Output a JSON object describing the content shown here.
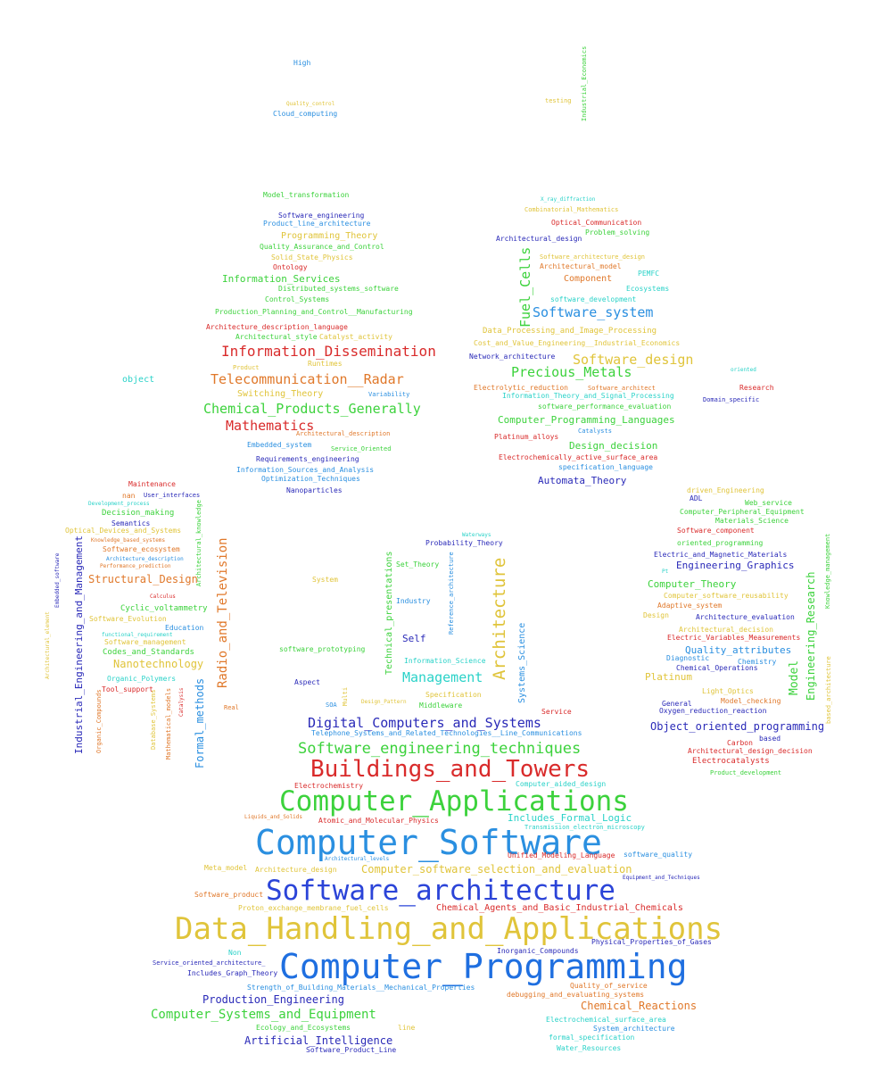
{
  "words": [
    {
      "text": "Computer_Programming",
      "color": "#1f6fe0"
    },
    {
      "text": "Computer_Software",
      "color": "#2a8fe0"
    },
    {
      "text": "Data_Handling_and_Applications",
      "color": "#e0c43a"
    },
    {
      "text": "Software_architecture",
      "color": "#2b44d8"
    },
    {
      "text": "Computer_Applications",
      "color": "#3cd23c"
    },
    {
      "text": "Buildings_and_Towers",
      "color": "#d92b2b"
    },
    {
      "text": "Software_engineering_techniques",
      "color": "#3cd23c"
    },
    {
      "text": "Digital_Computers_and_Systems",
      "color": "#2a2ab8"
    },
    {
      "text": "Architecture",
      "color": "#e0c43a"
    },
    {
      "text": "Information_Dissemination",
      "color": "#d92b2b"
    },
    {
      "text": "Telecommunication__Radar",
      "color": "#e0782a"
    },
    {
      "text": "Chemical_Products_Generally",
      "color": "#3cd23c"
    },
    {
      "text": "Mathematics",
      "color": "#d92b2b"
    },
    {
      "text": "Software_system",
      "color": "#2a8fe0"
    },
    {
      "text": "Software_design",
      "color": "#e0c43a"
    },
    {
      "text": "Precious_Metals",
      "color": "#3cd23c"
    },
    {
      "text": "Fuel_Cells",
      "color": "#3cd23c"
    },
    {
      "text": "Management",
      "color": "#2ad2c8"
    },
    {
      "text": "Radio_and_Television",
      "color": "#e0782a"
    },
    {
      "text": "Industrial_Engineering_and_Management",
      "color": "#2a2ab8"
    },
    {
      "text": "Formal_methods",
      "color": "#2a8fe0"
    },
    {
      "text": "Engineering_Research",
      "color": "#3cd23c"
    },
    {
      "text": "Model",
      "color": "#3cd23c"
    },
    {
      "text": "Structural_Design",
      "color": "#e0782a"
    },
    {
      "text": "Nanotechnology",
      "color": "#e0c43a"
    },
    {
      "text": "Computer_Systems_and_Equipment",
      "color": "#3cd23c"
    },
    {
      "text": "Artificial_Intelligence",
      "color": "#2a2ab8"
    },
    {
      "text": "Production_Engineering",
      "color": "#2a2ab8"
    },
    {
      "text": "Chemical_Reactions",
      "color": "#e0782a"
    },
    {
      "text": "Object_oriented_programming",
      "color": "#2a2ab8"
    },
    {
      "text": "Computer_Programming_Languages",
      "color": "#3cd23c"
    },
    {
      "text": "Design_decision",
      "color": "#3cd23c"
    },
    {
      "text": "Automata_Theory",
      "color": "#2a2ab8"
    },
    {
      "text": "Engineering_Graphics",
      "color": "#2a2ab8"
    },
    {
      "text": "Computer_Theory",
      "color": "#3cd23c"
    },
    {
      "text": "Quality_attributes",
      "color": "#2a8fe0"
    },
    {
      "text": "Information_Services",
      "color": "#3cd23c"
    },
    {
      "text": "Computer_software_selection_and_evaluation",
      "color": "#e0c43a"
    },
    {
      "text": "Chemical_Agents_and_Basic_Industrial_Chemicals",
      "color": "#d92b2b"
    },
    {
      "text": "Includes_Formal_Logic",
      "color": "#2ad2c8"
    },
    {
      "text": "Technical_presentations",
      "color": "#3cd23c"
    },
    {
      "text": "Systems_Science",
      "color": "#2a8fe0"
    },
    {
      "text": "Self",
      "color": "#2a2ab8"
    },
    {
      "text": "Platinum",
      "color": "#e0c43a"
    },
    {
      "text": "Programming_Theory",
      "color": "#e0c43a"
    },
    {
      "text": "Component",
      "color": "#e0782a"
    },
    {
      "text": "Switching_Theory",
      "color": "#e0c43a"
    },
    {
      "text": "object",
      "color": "#2ad2c8"
    },
    {
      "text": "Decision_making",
      "color": "#3cd23c"
    },
    {
      "text": "Codes_and_Standards",
      "color": "#3cd23c"
    },
    {
      "text": "Cyclic_voltammetry",
      "color": "#3cd23c"
    },
    {
      "text": "Data_Processing_and_Image_Processing",
      "color": "#e0c43a"
    },
    {
      "text": "Electrochemistry",
      "color": "#d92b2b"
    },
    {
      "text": "Architecture_design",
      "color": "#e0c43a"
    },
    {
      "text": "Software_Product_Line",
      "color": "#2a2ab8"
    },
    {
      "text": "Ecology_and_Ecosystems",
      "color": "#3cd23c"
    },
    {
      "text": "Strength_of_Building_Materials__Mechanical_Properties",
      "color": "#2a8fe0"
    },
    {
      "text": "Telephone_Systems_and_Related_Technologies__Line_Communications",
      "color": "#2a8fe0"
    },
    {
      "text": "Information_Science",
      "color": "#2ad2c8"
    },
    {
      "text": "Electrocatalysts",
      "color": "#d92b2b"
    },
    {
      "text": "Architectural_design_decision",
      "color": "#d92b2b"
    },
    {
      "text": "Oxygen_reduction_reaction",
      "color": "#2a2ab8"
    },
    {
      "text": "Chemistry",
      "color": "#2a8fe0"
    },
    {
      "text": "Chemical_Operations",
      "color": "#2a2ab8"
    },
    {
      "text": "Diagnostic",
      "color": "#2a8fe0"
    },
    {
      "text": "Electric_Variables_Measurements",
      "color": "#d92b2b"
    },
    {
      "text": "Architectural_decision",
      "color": "#e0c43a"
    },
    {
      "text": "Architecture_evaluation",
      "color": "#2a2ab8"
    },
    {
      "text": "Adaptive_system",
      "color": "#e0782a"
    },
    {
      "text": "Computer_software_reusability",
      "color": "#e0c43a"
    },
    {
      "text": "Electric_and_Magnetic_Materials",
      "color": "#2a2ab8"
    },
    {
      "text": "oriented_programming",
      "color": "#3cd23c"
    },
    {
      "text": "Software_component",
      "color": "#d92b2b"
    },
    {
      "text": "Materials_Science",
      "color": "#3cd23c"
    },
    {
      "text": "Computer_Peripheral_Equipment",
      "color": "#3cd23c"
    },
    {
      "text": "Web_service",
      "color": "#3cd23c"
    },
    {
      "text": "driven_Engineering",
      "color": "#e0c43a"
    },
    {
      "text": "ADL",
      "color": "#2a2ab8"
    },
    {
      "text": "Knowledge_management",
      "color": "#3cd23c"
    },
    {
      "text": "based_architecture",
      "color": "#e0c43a"
    },
    {
      "text": "Light_Optics",
      "color": "#e0c43a"
    },
    {
      "text": "Model_checking",
      "color": "#e0782a"
    },
    {
      "text": "General",
      "color": "#2a2ab8"
    },
    {
      "text": "Carbon",
      "color": "#d92b2b"
    },
    {
      "text": "based",
      "color": "#2a2ab8"
    },
    {
      "text": "Product_development",
      "color": "#3cd23c"
    },
    {
      "text": "Design",
      "color": "#e0c43a"
    },
    {
      "text": "Pt",
      "color": "#2ad2c8"
    },
    {
      "text": "Architectural_design",
      "color": "#2a2ab8"
    },
    {
      "text": "Optical_Communication",
      "color": "#d92b2b"
    },
    {
      "text": "Problem_solving",
      "color": "#3cd23c"
    },
    {
      "text": "Combinatorial_Mathematics",
      "color": "#e0c43a"
    },
    {
      "text": "X_ray_diffraction",
      "color": "#2ad2c8"
    },
    {
      "text": "Software_architecture_design",
      "color": "#e0c43a"
    },
    {
      "text": "Architectural_model",
      "color": "#e0782a"
    },
    {
      "text": "PEMFC",
      "color": "#2ad2c8"
    },
    {
      "text": "Ecosystems",
      "color": "#2ad2c8"
    },
    {
      "text": "software_development",
      "color": "#2ad2c8"
    },
    {
      "text": "Cost_and_Value_Engineering__Industrial_Economics",
      "color": "#e0c43a"
    },
    {
      "text": "Network_architecture",
      "color": "#2a2ab8"
    },
    {
      "text": "oriented",
      "color": "#2ad2c8"
    },
    {
      "text": "Research",
      "color": "#d92b2b"
    },
    {
      "text": "Domain_specific",
      "color": "#2a2ab8"
    },
    {
      "text": "Electrolytic_reduction",
      "color": "#e0782a"
    },
    {
      "text": "Software_architect",
      "color": "#e0782a"
    },
    {
      "text": "Information_Theory_and_Signal_Processing",
      "color": "#2ad2c8"
    },
    {
      "text": "software_performance_evaluation",
      "color": "#3cd23c"
    },
    {
      "text": "Catalysts",
      "color": "#2a8fe0"
    },
    {
      "text": "Platinum_alloys",
      "color": "#d92b2b"
    },
    {
      "text": "Electrochemically_active_surface_area",
      "color": "#d92b2b"
    },
    {
      "text": "specification_language",
      "color": "#2a8fe0"
    },
    {
      "text": "High",
      "color": "#2a8fe0"
    },
    {
      "text": "Quality_control",
      "color": "#e0c43a"
    },
    {
      "text": "Cloud_computing",
      "color": "#2a8fe0"
    },
    {
      "text": "testing",
      "color": "#e0c43a"
    },
    {
      "text": "Industrial_Economics",
      "color": "#3cd23c"
    },
    {
      "text": "Model_transformation",
      "color": "#3cd23c"
    },
    {
      "text": "Software_engineering",
      "color": "#2a2ab8"
    },
    {
      "text": "Product_line_architecture",
      "color": "#2a8fe0"
    },
    {
      "text": "Quality_Assurance_and_Control",
      "color": "#3cd23c"
    },
    {
      "text": "Solid_State_Physics",
      "color": "#e0c43a"
    },
    {
      "text": "Ontology",
      "color": "#d92b2b"
    },
    {
      "text": "Distributed_systems_software",
      "color": "#3cd23c"
    },
    {
      "text": "Control_Systems",
      "color": "#3cd23c"
    },
    {
      "text": "Production_Planning_and_Control__Manufacturing",
      "color": "#3cd23c"
    },
    {
      "text": "Architecture_description_language",
      "color": "#d92b2b"
    },
    {
      "text": "Architectural_style",
      "color": "#3cd23c"
    },
    {
      "text": "Catalyst_activity",
      "color": "#e0c43a"
    },
    {
      "text": "Product",
      "color": "#e0c43a"
    },
    {
      "text": "Runtimes",
      "color": "#e0c43a"
    },
    {
      "text": "Variability",
      "color": "#2a8fe0"
    },
    {
      "text": "Architectural_description",
      "color": "#e0782a"
    },
    {
      "text": "Embedded_system",
      "color": "#2a8fe0"
    },
    {
      "text": "Service_Oriented",
      "color": "#3cd23c"
    },
    {
      "text": "Requirements_engineering",
      "color": "#2a2ab8"
    },
    {
      "text": "Information_Sources_and_Analysis",
      "color": "#2a8fe0"
    },
    {
      "text": "Optimization_Techniques",
      "color": "#2a8fe0"
    },
    {
      "text": "Nanoparticles",
      "color": "#2a2ab8"
    },
    {
      "text": "Maintenance",
      "color": "#d92b2b"
    },
    {
      "text": "nan",
      "color": "#e0782a"
    },
    {
      "text": "User_interfaces",
      "color": "#2a2ab8"
    },
    {
      "text": "Development_process",
      "color": "#2ad2c8"
    },
    {
      "text": "Semantics",
      "color": "#2a2ab8"
    },
    {
      "text": "Optical_Devices_and_Systems",
      "color": "#e0c43a"
    },
    {
      "text": "Knowledge_based_systems",
      "color": "#e0782a"
    },
    {
      "text": "Software_ecosystem",
      "color": "#e0782a"
    },
    {
      "text": "Architecture_description",
      "color": "#2a8fe0"
    },
    {
      "text": "Performance_prediction",
      "color": "#e0782a"
    },
    {
      "text": "Calculus",
      "color": "#d92b2b"
    },
    {
      "text": "Software_Evolution",
      "color": "#e0c43a"
    },
    {
      "text": "Education",
      "color": "#2a8fe0"
    },
    {
      "text": "functional_requirement",
      "color": "#2ad2c8"
    },
    {
      "text": "Software_management",
      "color": "#e0c43a"
    },
    {
      "text": "Organic_Polymers",
      "color": "#2ad2c8"
    },
    {
      "text": "Tool_support",
      "color": "#d92b2b"
    },
    {
      "text": "Architectural_knowledge",
      "color": "#3cd23c"
    },
    {
      "text": "Embedded_software",
      "color": "#2a2ab8"
    },
    {
      "text": "Architectural_element",
      "color": "#e0c43a"
    },
    {
      "text": "Organic_Compounds",
      "color": "#e0782a"
    },
    {
      "text": "Database_Systems",
      "color": "#e0c43a"
    },
    {
      "text": "Mathematical_models",
      "color": "#e0782a"
    },
    {
      "text": "Catalysis",
      "color": "#d92b2b"
    },
    {
      "text": "System",
      "color": "#e0c43a"
    },
    {
      "text": "software_prototyping",
      "color": "#3cd23c"
    },
    {
      "text": "Aspect",
      "color": "#2a2ab8"
    },
    {
      "text": "Real",
      "color": "#e0782a"
    },
    {
      "text": "SOA",
      "color": "#2a8fe0"
    },
    {
      "text": "Multi",
      "color": "#e0c43a"
    },
    {
      "text": "Design_Pattern",
      "color": "#e0c43a"
    },
    {
      "text": "Middleware",
      "color": "#3cd23c"
    },
    {
      "text": "Specification",
      "color": "#e0c43a"
    },
    {
      "text": "Service",
      "color": "#d92b2b"
    },
    {
      "text": "Industry",
      "color": "#2a8fe0"
    },
    {
      "text": "Set_Theory",
      "color": "#3cd23c"
    },
    {
      "text": "Reference_architecture",
      "color": "#2a8fe0"
    },
    {
      "text": "Probability_Theory",
      "color": "#2a2ab8"
    },
    {
      "text": "Waterways",
      "color": "#2ad2c8"
    },
    {
      "text": "Liquids_and_Solids",
      "color": "#e0782a"
    },
    {
      "text": "Atomic_and_Molecular_Physics",
      "color": "#d92b2b"
    },
    {
      "text": "Computer_aided_design",
      "color": "#2ad2c8"
    },
    {
      "text": "Transmission_electron_microscopy",
      "color": "#2ad2c8"
    },
    {
      "text": "Architectural_levels",
      "color": "#2a8fe0"
    },
    {
      "text": "Unified_Modeling_Language",
      "color": "#d92b2b"
    },
    {
      "text": "software_quality",
      "color": "#2a8fe0"
    },
    {
      "text": "Meta_model",
      "color": "#e0c43a"
    },
    {
      "text": "Equipment_and_Techniques",
      "color": "#2a2ab8"
    },
    {
      "text": "Software_product",
      "color": "#e0782a"
    },
    {
      "text": "Proton_exchange_membrane_fuel_cells",
      "color": "#e0c43a"
    },
    {
      "text": "Physical_Properties_of_Gases",
      "color": "#2a2ab8"
    },
    {
      "text": "Non",
      "color": "#2ad2c8"
    },
    {
      "text": "Inorganic_Compounds",
      "color": "#2a2ab8"
    },
    {
      "text": "Service_oriented_architecture_",
      "color": "#2a2ab8"
    },
    {
      "text": "Includes_Graph_Theory",
      "color": "#2a2ab8"
    },
    {
      "text": "Quality_of_service",
      "color": "#e0782a"
    },
    {
      "text": "debugging_and_evaluating_systems",
      "color": "#e0782a"
    },
    {
      "text": "Electrochemical_surface_area",
      "color": "#2ad2c8"
    },
    {
      "text": "System_architecture",
      "color": "#2a8fe0"
    },
    {
      "text": "formal_specification",
      "color": "#2ad2c8"
    },
    {
      "text": "Water_Resources",
      "color": "#2ad2c8"
    },
    {
      "text": "line",
      "color": "#e0c43a"
    }
  ]
}
